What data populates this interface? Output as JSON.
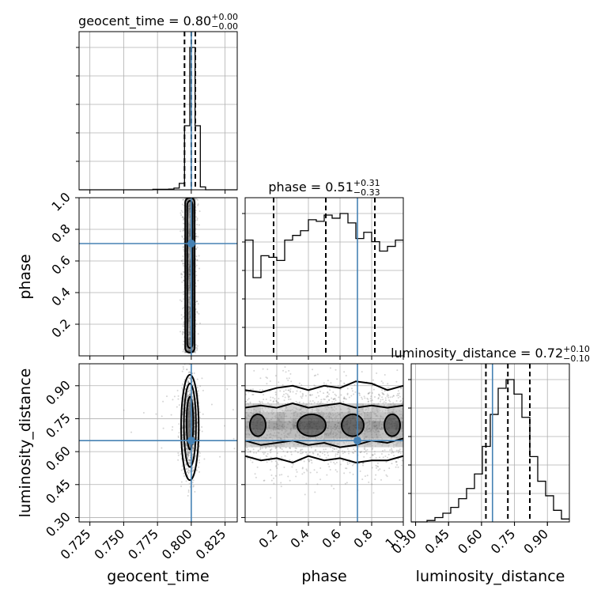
{
  "chart_data": {
    "type": "corner",
    "parameters": [
      {
        "name": "geocent_time",
        "axis_label": "geocent_time",
        "title_main": "geocent_time = 0.80",
        "title_sup": "+0.00",
        "title_sub": "−0.00",
        "range": [
          0.717,
          0.834
        ],
        "ticks": [
          0.725,
          0.75,
          0.775,
          0.8,
          0.825
        ],
        "tick_labels": [
          "0.725",
          "0.750",
          "0.775",
          "0.800",
          "0.825"
        ],
        "truth": 0.8,
        "quantiles": [
          0.795,
          0.8,
          0.803
        ],
        "histogram": {
          "edges": [
            0.717,
            0.7209,
            0.7248,
            0.7287,
            0.7326,
            0.7365,
            0.7404,
            0.7443,
            0.7482,
            0.7521,
            0.756,
            0.7599,
            0.7638,
            0.7677,
            0.7716,
            0.7755,
            0.7794,
            0.7833,
            0.7872,
            0.7911,
            0.795,
            0.7989,
            0.8028,
            0.8067,
            0.8106,
            0.8145,
            0.8184,
            0.8223,
            0.8262,
            0.8301,
            0.834
          ],
          "density": [
            0,
            0,
            0,
            0,
            0,
            0,
            0,
            0,
            0,
            0,
            0,
            0,
            0,
            0,
            0.003,
            0.003,
            0.003,
            0.005,
            0.012,
            0.045,
            0.45,
            1.0,
            0.45,
            0.02,
            0,
            0,
            0,
            0,
            0,
            0
          ]
        }
      },
      {
        "name": "phase",
        "axis_label": "phase",
        "title_main": "phase = 0.51",
        "title_sup": "+0.31",
        "title_sub": "−0.33",
        "range": [
          0.0,
          1.0
        ],
        "ticks": [
          0.2,
          0.4,
          0.6,
          0.8,
          1.0
        ],
        "tick_labels": [
          "0.2",
          "0.4",
          "0.6",
          "0.8",
          "1.0"
        ],
        "truth": 0.71,
        "quantiles": [
          0.18,
          0.51,
          0.82
        ],
        "histogram": {
          "edges": [
            0.0,
            0.05,
            0.1,
            0.15,
            0.2,
            0.25,
            0.3,
            0.35,
            0.4,
            0.45,
            0.5,
            0.55,
            0.6,
            0.65,
            0.7,
            0.75,
            0.8,
            0.85,
            0.9,
            0.95,
            1.0
          ],
          "density": [
            0.74,
            0.5,
            0.64,
            0.63,
            0.61,
            0.74,
            0.77,
            0.8,
            0.87,
            0.86,
            0.9,
            0.88,
            0.91,
            0.85,
            0.75,
            0.79,
            0.73,
            0.67,
            0.7,
            0.74
          ]
        }
      },
      {
        "name": "luminosity_distance",
        "axis_label": "luminosity_distance",
        "title_main": "luminosity_distance = 0.72",
        "title_sup": "+0.10",
        "title_sub": "−0.10",
        "range": [
          0.28,
          1.0
        ],
        "ticks": [
          0.3,
          0.45,
          0.6,
          0.75,
          0.9
        ],
        "tick_labels": [
          "0.30",
          "0.45",
          "0.60",
          "0.75",
          "0.90"
        ],
        "truth": 0.65,
        "quantiles": [
          0.62,
          0.72,
          0.82
        ],
        "histogram": {
          "edges": [
            0.28,
            0.316,
            0.352,
            0.388,
            0.424,
            0.46,
            0.496,
            0.532,
            0.568,
            0.604,
            0.64,
            0.676,
            0.712,
            0.748,
            0.784,
            0.82,
            0.856,
            0.892,
            0.928,
            0.964,
            1.0
          ],
          "density": [
            0,
            0,
            0.01,
            0.03,
            0.06,
            0.1,
            0.16,
            0.23,
            0.33,
            0.52,
            0.74,
            0.92,
            0.98,
            0.88,
            0.72,
            0.45,
            0.28,
            0.18,
            0.08,
            0.02
          ]
        }
      }
    ],
    "pairs": [
      {
        "x": "geocent_time",
        "y": "phase",
        "x_center": 0.799,
        "x_spread": 0.0025,
        "y_range": [
          0.02,
          1.0
        ],
        "contours": [
          {
            "x_range": [
              0.7955,
              0.8025
            ],
            "y_range": [
              0.02,
              1.0
            ]
          },
          {
            "x_range": [
              0.797,
              0.801
            ],
            "y_range": [
              0.05,
              0.98
            ]
          }
        ]
      },
      {
        "x": "geocent_time",
        "y": "luminosity_distance",
        "contours": [
          {
            "cx": 0.799,
            "cy": 0.71,
            "rx": 0.0065,
            "ry": 0.24
          },
          {
            "cx": 0.799,
            "cy": 0.72,
            "rx": 0.0045,
            "ry": 0.19
          },
          {
            "cx": 0.799,
            "cy": 0.73,
            "rx": 0.0025,
            "ry": 0.12
          }
        ]
      },
      {
        "x": "phase",
        "y": "luminosity_distance",
        "bands": [
          {
            "y_bottom": [
              0.58,
              0.56,
              0.57,
              0.55,
              0.58,
              0.56,
              0.57,
              0.55,
              0.56,
              0.56,
              0.58
            ],
            "y_top": [
              0.88,
              0.87,
              0.89,
              0.9,
              0.88,
              0.9,
              0.89,
              0.92,
              0.91,
              0.88,
              0.9
            ]
          },
          {
            "y_bottom": [
              0.65,
              0.63,
              0.64,
              0.65,
              0.63,
              0.64,
              0.62,
              0.63,
              0.65,
              0.64,
              0.66
            ],
            "y_top": [
              0.8,
              0.81,
              0.8,
              0.82,
              0.8,
              0.81,
              0.82,
              0.8,
              0.81,
              0.8,
              0.81
            ]
          }
        ],
        "islands": [
          {
            "cx": 0.08,
            "cy": 0.72,
            "rx": 0.05,
            "ry": 0.05
          },
          {
            "cx": 0.42,
            "cy": 0.72,
            "rx": 0.09,
            "ry": 0.05
          },
          {
            "cx": 0.68,
            "cy": 0.72,
            "rx": 0.07,
            "ry": 0.05
          },
          {
            "cx": 0.93,
            "cy": 0.72,
            "rx": 0.05,
            "ry": 0.05
          }
        ]
      }
    ],
    "colors": {
      "truth": "#4682b4",
      "hist": "#000000",
      "grid": "#b0b0b0",
      "points": "#888888"
    },
    "grid": true
  }
}
